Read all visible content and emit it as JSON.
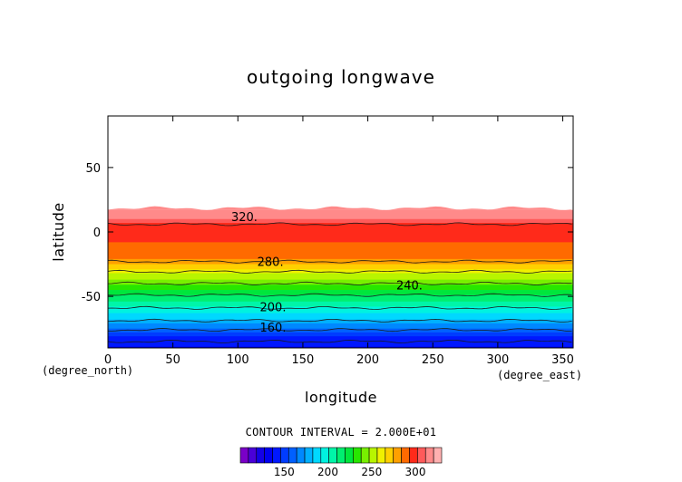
{
  "chart_data": {
    "type": "heatmap",
    "title": "outgoing longwave",
    "xlabel": "longitude",
    "ylabel": "latitude",
    "x_unit": "(degree_east)",
    "y_unit": "(degree_north)",
    "xlim": [
      0,
      358
    ],
    "ylim": [
      -90,
      90
    ],
    "x_ticks": [
      0,
      50,
      100,
      150,
      200,
      250,
      300,
      350
    ],
    "y_ticks": [
      -50,
      0,
      50
    ],
    "data_lat_range": [
      -90,
      17
    ],
    "contour_interval_text": "CONTOUR INTERVAL = 2.000E+01",
    "contour_labels": [
      {
        "text": "320.",
        "lon": 105,
        "lat": 12
      },
      {
        "text": "280.",
        "lon": 125,
        "lat": -23
      },
      {
        "text": "240.",
        "lon": 232,
        "lat": -41
      },
      {
        "text": "200.",
        "lon": 127,
        "lat": -58
      },
      {
        "text": "160.",
        "lon": 127,
        "lat": -74
      }
    ],
    "lat_profile": [
      {
        "lat": 17,
        "value": 318
      },
      {
        "lat": 13,
        "value": 318
      },
      {
        "lat": 12,
        "value": 315
      },
      {
        "lat": 9,
        "value": 310
      },
      {
        "lat": 6,
        "value": 300
      },
      {
        "lat": 2,
        "value": 296
      },
      {
        "lat": -3,
        "value": 295
      },
      {
        "lat": -8,
        "value": 293
      },
      {
        "lat": -12,
        "value": 292
      },
      {
        "lat": -17,
        "value": 288
      },
      {
        "lat": -20,
        "value": 285
      },
      {
        "lat": -23,
        "value": 280
      },
      {
        "lat": -27,
        "value": 270
      },
      {
        "lat": -30,
        "value": 262
      },
      {
        "lat": -33,
        "value": 255
      },
      {
        "lat": -37,
        "value": 248
      },
      {
        "lat": -40,
        "value": 240
      },
      {
        "lat": -44,
        "value": 230
      },
      {
        "lat": -48,
        "value": 222
      },
      {
        "lat": -52,
        "value": 214
      },
      {
        "lat": -56,
        "value": 206
      },
      {
        "lat": -60,
        "value": 198
      },
      {
        "lat": -64,
        "value": 190
      },
      {
        "lat": -68,
        "value": 182
      },
      {
        "lat": -72,
        "value": 172
      },
      {
        "lat": -76,
        "value": 160
      },
      {
        "lat": -80,
        "value": 148
      },
      {
        "lat": -85,
        "value": 140
      },
      {
        "lat": -90,
        "value": 136
      }
    ],
    "contour_levels": [
      140,
      160,
      180,
      200,
      220,
      240,
      260,
      280,
      300,
      320
    ],
    "colorbar": {
      "min": 100,
      "max": 330,
      "ticks": [
        150,
        200,
        250,
        300
      ],
      "colors": [
        "#7a00c8",
        "#4a00d8",
        "#1400e6",
        "#0000f0",
        "#0018ff",
        "#003cff",
        "#0060ff",
        "#0088ff",
        "#00b0ff",
        "#00d8ff",
        "#00f2e0",
        "#00f5a8",
        "#00ee70",
        "#00e63c",
        "#28e600",
        "#78f000",
        "#b8f500",
        "#f0f000",
        "#ffd000",
        "#ffa000",
        "#ff6a00",
        "#ff2a1a",
        "#ff5a5a",
        "#ff8a8a",
        "#ffb0b0"
      ]
    }
  }
}
